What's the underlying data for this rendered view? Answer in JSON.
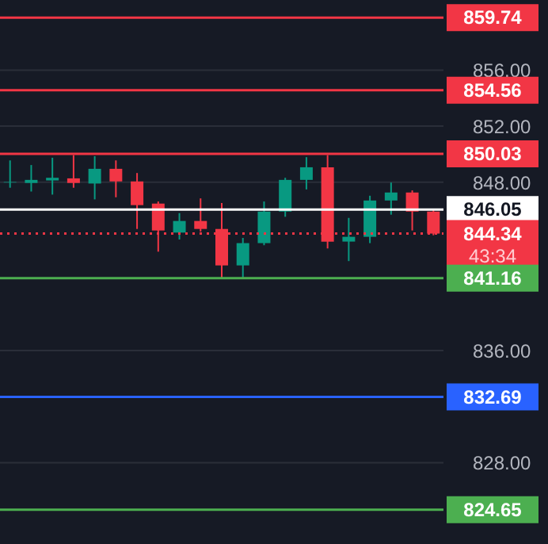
{
  "chart_data": {
    "type": "candlestick",
    "categories": [
      null,
      null,
      null,
      null,
      null,
      null,
      null,
      null,
      null,
      null,
      null,
      null,
      null,
      null,
      null,
      null,
      null,
      null,
      null,
      null,
      null
    ],
    "ohlc": [
      [
        847.98,
        849.56,
        847.61,
        848.02
      ],
      [
        847.95,
        849.23,
        847.34,
        848.17
      ],
      [
        848.13,
        849.75,
        847.12,
        848.32
      ],
      [
        848.28,
        849.94,
        847.61,
        847.95
      ],
      [
        847.91,
        849.86,
        846.78,
        848.96
      ],
      [
        848.96,
        849.56,
        846.93,
        848.06
      ],
      [
        848.06,
        848.66,
        844.67,
        846.37
      ],
      [
        846.48,
        846.63,
        843.05,
        844.56
      ],
      [
        844.41,
        845.8,
        843.92,
        845.24
      ],
      [
        845.24,
        846.85,
        844.48,
        844.67
      ],
      [
        844.67,
        846.52,
        841.21,
        842.07
      ],
      [
        842.07,
        844.03,
        841.21,
        843.66
      ],
      [
        843.66,
        846.63,
        843.51,
        845.91
      ],
      [
        845.91,
        848.32,
        845.54,
        848.17
      ],
      [
        848.17,
        849.79,
        847.49,
        849.07
      ],
      [
        849.07,
        849.94,
        843.28,
        843.77
      ],
      [
        843.77,
        845.46,
        842.38,
        844.11
      ],
      [
        844.11,
        847.04,
        843.66,
        846.7
      ],
      [
        846.7,
        847.98,
        845.69,
        847.27
      ],
      [
        847.27,
        847.42,
        844.56,
        845.91
      ],
      [
        845.91,
        846.1,
        844.22,
        844.34
      ]
    ],
    "colors": [
      "#089981",
      "#089981",
      "#089981",
      "#f23645",
      "#089981",
      "#f23645",
      "#f23645",
      "#f23645",
      "#089981",
      "#f23645",
      "#f23645",
      "#089981",
      "#089981",
      "#089981",
      "#089981",
      "#f23645",
      "#089981",
      "#089981",
      "#089981",
      "#f23645",
      "#f23645"
    ],
    "ylim": [
      822.2,
      861.0
    ],
    "yticks": [
      {
        "value": 828,
        "label": "828.00"
      },
      {
        "value": 836,
        "label": "836.00"
      },
      {
        "value": 848,
        "label": "848.00"
      },
      {
        "value": 852,
        "label": "852.00"
      },
      {
        "value": 856,
        "label": "856.00"
      }
    ],
    "tick_labels": "y",
    "grid": "y",
    "ref_lines": [
      {
        "axis": "y",
        "value": 859.74,
        "label": "859.74",
        "color": "#f23645"
      },
      {
        "axis": "y",
        "value": 854.56,
        "label": "854.56",
        "color": "#f23645"
      },
      {
        "axis": "y",
        "value": 850.03,
        "label": "850.03",
        "color": "#f23645"
      },
      {
        "axis": "y",
        "value": 846.05,
        "label": "846.05",
        "color": "#ffffff"
      },
      {
        "axis": "y",
        "value": 844.34,
        "label": "844.34",
        "color": "#f23645",
        "line_style": "dotted"
      },
      {
        "axis": "y",
        "value": 841.16,
        "label": "841.16",
        "color": "#4caf50"
      },
      {
        "axis": "y",
        "value": 832.69,
        "label": "832.69",
        "color": "#2962ff"
      },
      {
        "axis": "y",
        "value": 824.65,
        "label": "824.65",
        "color": "#4caf50"
      }
    ],
    "annotations": [
      "43:34"
    ]
  }
}
